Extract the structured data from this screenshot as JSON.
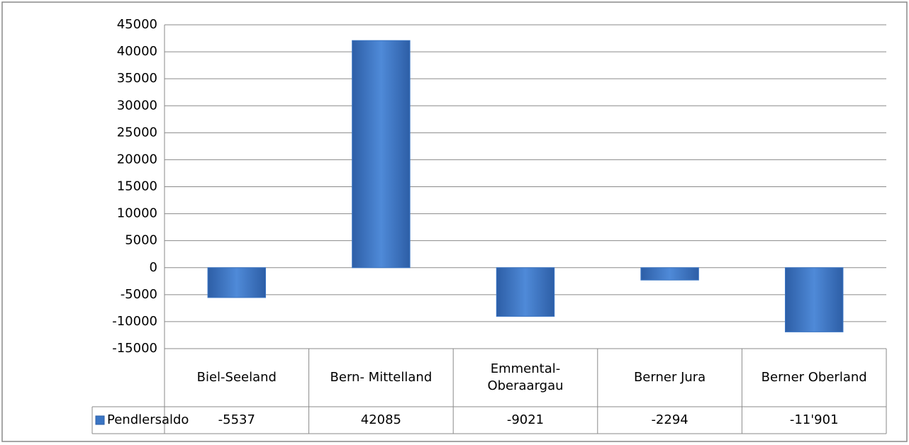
{
  "chart_data": {
    "type": "bar",
    "categories": [
      "Biel-Seeland",
      "Bern- Mittelland",
      "Emmental- Oberaargau",
      "Berner Jura",
      "Berner Oberland"
    ],
    "series": [
      {
        "name": "Pendlersaldo",
        "color": "#3a75c4",
        "values": [
          -5537,
          42085,
          -9021,
          -2294,
          -11901
        ],
        "value_labels": [
          "-5537",
          "42085",
          "-9021",
          "-2294",
          "-11'901"
        ]
      }
    ],
    "ylim": [
      -15000,
      45000
    ],
    "yticks": [
      -15000,
      -10000,
      -5000,
      0,
      5000,
      10000,
      15000,
      20000,
      25000,
      30000,
      35000,
      40000,
      45000
    ],
    "grid": true,
    "legend": "data-table"
  }
}
